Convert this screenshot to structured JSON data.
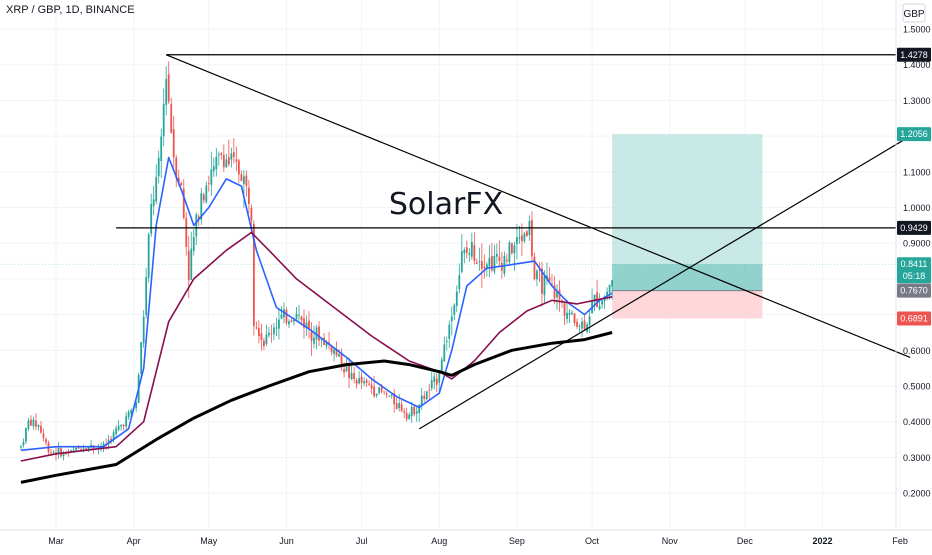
{
  "header": {
    "symbol_line": "XRP / GBP, 1D, BINANCE"
  },
  "watermark": "SolarFX",
  "currency": "GBP",
  "colors": {
    "up": "#26a69a",
    "down": "#ef5350",
    "ema_fast": "#2962ff",
    "ema_slow": "#880e4f",
    "sma_long": "#000000",
    "grid": "#f0f3fa",
    "axis_text": "#131722",
    "tp_zone": "#b2dfdb",
    "sl_zone": "#ffcdd2"
  },
  "chart_data": {
    "type": "candlestick",
    "pair": "XRP / GBP",
    "timeframe": "1D",
    "exchange": "BINANCE",
    "y_axis": {
      "range": [
        0.15,
        1.56
      ],
      "ticks": [
        "1.5000",
        "1.4000",
        "1.3000",
        "1.2000",
        "1.1000",
        "1.0000",
        "0.9000",
        "0.8000",
        "0.7000",
        "0.6000",
        "0.5000",
        "0.4000",
        "0.3000",
        "0.2000"
      ]
    },
    "x_axis": {
      "ticks": [
        "Mar",
        "Apr",
        "May",
        "Jun",
        "Jul",
        "Aug",
        "Sep",
        "Oct",
        "Nov",
        "Dec",
        "2022",
        "Feb"
      ]
    },
    "price_path": [
      [
        "2021-02-15",
        0.33
      ],
      [
        "2021-02-18",
        0.4
      ],
      [
        "2021-02-22",
        0.39
      ],
      [
        "2021-02-26",
        0.32
      ],
      [
        "2021-03-05",
        0.31
      ],
      [
        "2021-03-12",
        0.33
      ],
      [
        "2021-03-20",
        0.33
      ],
      [
        "2021-03-28",
        0.4
      ],
      [
        "2021-04-02",
        0.45
      ],
      [
        "2021-04-05",
        0.7
      ],
      [
        "2021-04-08",
        1.0
      ],
      [
        "2021-04-11",
        1.1
      ],
      [
        "2021-04-14",
        1.38
      ],
      [
        "2021-04-17",
        1.15
      ],
      [
        "2021-04-20",
        1.05
      ],
      [
        "2021-04-23",
        0.82
      ],
      [
        "2021-04-28",
        1.05
      ],
      [
        "2021-05-03",
        1.1
      ],
      [
        "2021-05-06",
        1.15
      ],
      [
        "2021-05-10",
        1.12
      ],
      [
        "2021-05-14",
        1.1
      ],
      [
        "2021-05-18",
        1.0
      ],
      [
        "2021-05-19",
        0.7
      ],
      [
        "2021-05-23",
        0.62
      ],
      [
        "2021-05-28",
        0.68
      ],
      [
        "2021-06-05",
        0.7
      ],
      [
        "2021-06-12",
        0.65
      ],
      [
        "2021-06-20",
        0.6
      ],
      [
        "2021-06-27",
        0.52
      ],
      [
        "2021-07-04",
        0.5
      ],
      [
        "2021-07-12",
        0.47
      ],
      [
        "2021-07-20",
        0.42
      ],
      [
        "2021-07-24",
        0.45
      ],
      [
        "2021-07-31",
        0.52
      ],
      [
        "2021-08-06",
        0.7
      ],
      [
        "2021-08-10",
        0.86
      ],
      [
        "2021-08-14",
        0.88
      ],
      [
        "2021-08-20",
        0.85
      ],
      [
        "2021-08-26",
        0.85
      ],
      [
        "2021-09-01",
        0.9
      ],
      [
        "2021-09-06",
        0.95
      ],
      [
        "2021-09-08",
        0.8
      ],
      [
        "2021-09-14",
        0.78
      ],
      [
        "2021-09-20",
        0.72
      ],
      [
        "2021-09-24",
        0.68
      ],
      [
        "2021-09-28",
        0.67
      ],
      [
        "2021-10-02",
        0.74
      ],
      [
        "2021-10-06",
        0.75
      ],
      [
        "2021-10-09",
        0.8
      ]
    ],
    "indicators": [
      {
        "name": "ema_fast",
        "color": "#2962ff",
        "points": [
          [
            "2021-02-15",
            0.32
          ],
          [
            "2021-03-01",
            0.33
          ],
          [
            "2021-03-20",
            0.33
          ],
          [
            "2021-03-30",
            0.38
          ],
          [
            "2021-04-05",
            0.55
          ],
          [
            "2021-04-10",
            0.95
          ],
          [
            "2021-04-15",
            1.14
          ],
          [
            "2021-04-20",
            1.05
          ],
          [
            "2021-04-25",
            0.95
          ],
          [
            "2021-05-01",
            1.0
          ],
          [
            "2021-05-08",
            1.08
          ],
          [
            "2021-05-14",
            1.06
          ],
          [
            "2021-05-20",
            0.88
          ],
          [
            "2021-05-28",
            0.72
          ],
          [
            "2021-06-10",
            0.66
          ],
          [
            "2021-06-25",
            0.58
          ],
          [
            "2021-07-05",
            0.52
          ],
          [
            "2021-07-15",
            0.47
          ],
          [
            "2021-07-24",
            0.44
          ],
          [
            "2021-08-01",
            0.48
          ],
          [
            "2021-08-06",
            0.6
          ],
          [
            "2021-08-12",
            0.78
          ],
          [
            "2021-08-20",
            0.83
          ],
          [
            "2021-08-30",
            0.84
          ],
          [
            "2021-09-08",
            0.85
          ],
          [
            "2021-09-15",
            0.78
          ],
          [
            "2021-09-22",
            0.73
          ],
          [
            "2021-09-28",
            0.7
          ],
          [
            "2021-10-04",
            0.74
          ],
          [
            "2021-10-09",
            0.76
          ]
        ]
      },
      {
        "name": "ema_slow",
        "color": "#880e4f",
        "points": [
          [
            "2021-02-15",
            0.29
          ],
          [
            "2021-03-01",
            0.31
          ],
          [
            "2021-03-25",
            0.33
          ],
          [
            "2021-04-05",
            0.4
          ],
          [
            "2021-04-15",
            0.68
          ],
          [
            "2021-04-25",
            0.8
          ],
          [
            "2021-05-08",
            0.88
          ],
          [
            "2021-05-18",
            0.93
          ],
          [
            "2021-05-25",
            0.88
          ],
          [
            "2021-06-05",
            0.8
          ],
          [
            "2021-06-20",
            0.72
          ],
          [
            "2021-07-05",
            0.64
          ],
          [
            "2021-07-20",
            0.57
          ],
          [
            "2021-08-01",
            0.54
          ],
          [
            "2021-08-06",
            0.52
          ],
          [
            "2021-08-15",
            0.57
          ],
          [
            "2021-08-25",
            0.65
          ],
          [
            "2021-09-05",
            0.71
          ],
          [
            "2021-09-15",
            0.74
          ],
          [
            "2021-09-25",
            0.73
          ],
          [
            "2021-10-02",
            0.74
          ],
          [
            "2021-10-09",
            0.75
          ]
        ]
      },
      {
        "name": "sma_long",
        "color": "#000000",
        "points": [
          [
            "2021-02-15",
            0.23
          ],
          [
            "2021-03-01",
            0.25
          ],
          [
            "2021-03-25",
            0.28
          ],
          [
            "2021-04-10",
            0.35
          ],
          [
            "2021-04-25",
            0.41
          ],
          [
            "2021-05-10",
            0.46
          ],
          [
            "2021-05-25",
            0.5
          ],
          [
            "2021-06-10",
            0.54
          ],
          [
            "2021-06-25",
            0.56
          ],
          [
            "2021-07-10",
            0.57
          ],
          [
            "2021-07-20",
            0.56
          ],
          [
            "2021-08-01",
            0.54
          ],
          [
            "2021-08-06",
            0.53
          ],
          [
            "2021-08-15",
            0.56
          ],
          [
            "2021-08-30",
            0.6
          ],
          [
            "2021-09-15",
            0.62
          ],
          [
            "2021-09-28",
            0.63
          ],
          [
            "2021-10-09",
            0.65
          ]
        ]
      }
    ],
    "drawings": [
      {
        "kind": "horizontal",
        "y": 1.4278
      },
      {
        "kind": "horizontal",
        "y": 0.9429
      },
      {
        "kind": "trendline",
        "from": [
          "2021-04-14",
          1.4278
        ],
        "to": [
          "2022-02-05",
          0.58
        ]
      },
      {
        "kind": "trendline",
        "from": [
          "2021-07-24",
          0.38
        ],
        "to": [
          "2022-02-05",
          1.2
        ]
      }
    ],
    "position": {
      "entry": 0.767,
      "target": 1.2056,
      "stop": 0.6891,
      "from": "2021-10-09",
      "to": "2021-12-08"
    },
    "price_labels": [
      {
        "text": "1.4278",
        "value": 1.4278,
        "style": "black"
      },
      {
        "text": "1.2056",
        "value": 1.2056,
        "style": "green"
      },
      {
        "text": "0.9429",
        "value": 0.9429,
        "style": "black"
      },
      {
        "text": "0.8411",
        "sub": "05:18",
        "value": 0.8411,
        "style": "green"
      },
      {
        "text": "0.7670",
        "value": 0.767,
        "style": "gray"
      },
      {
        "text": "0.6891",
        "value": 0.6891,
        "style": "red"
      }
    ]
  }
}
